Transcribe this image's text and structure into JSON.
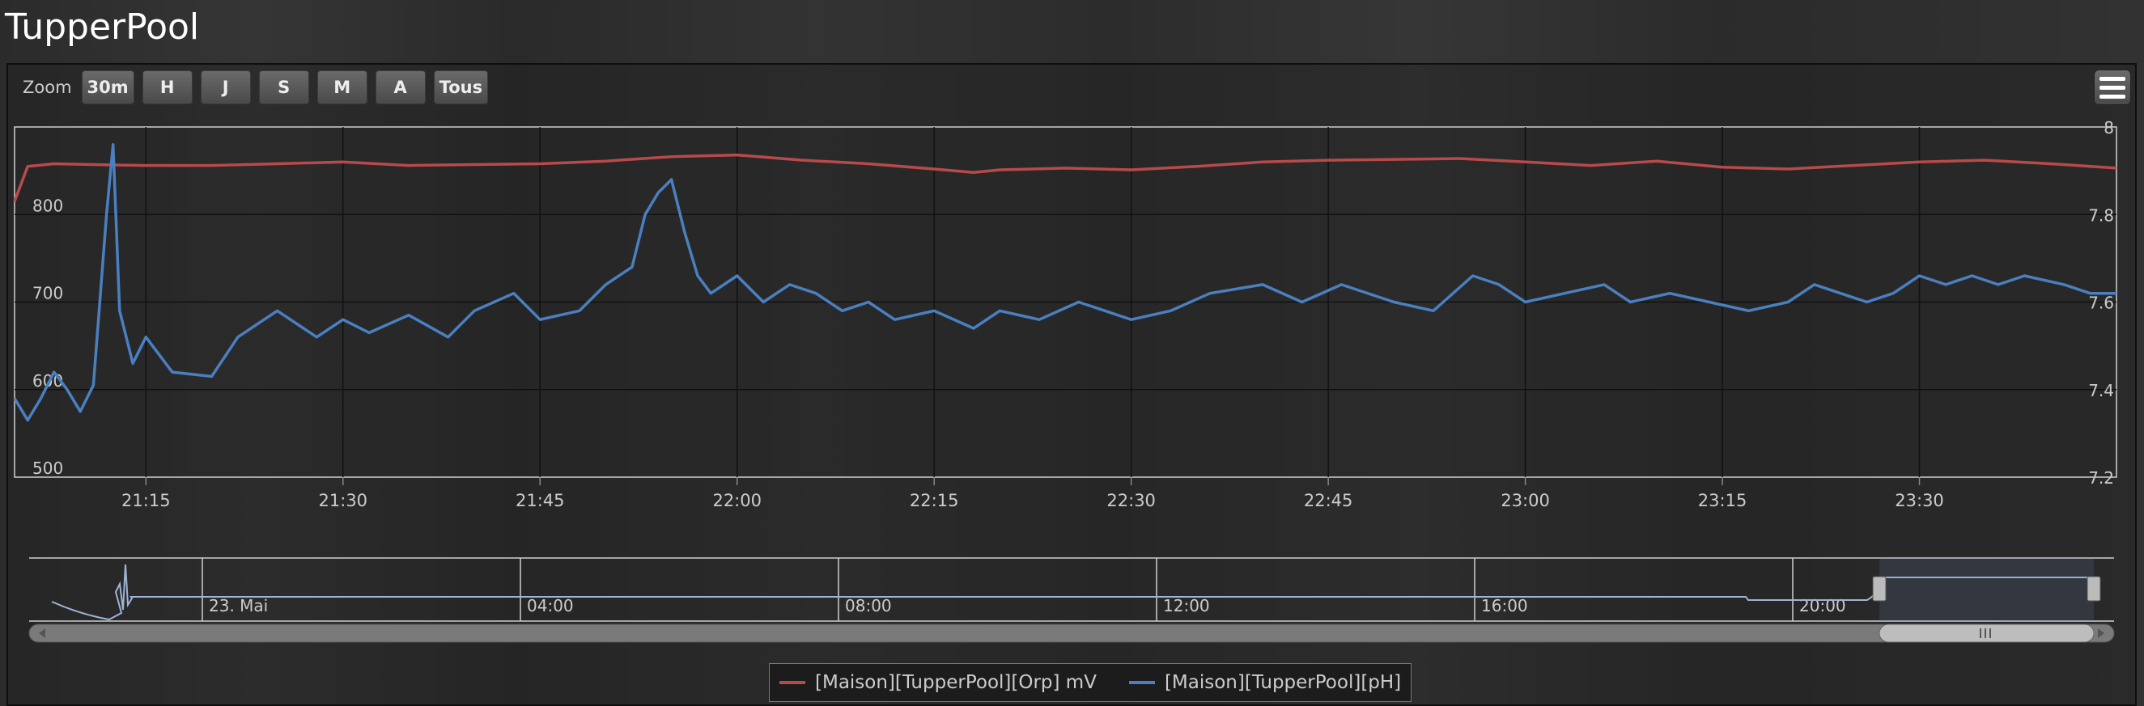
{
  "page": {
    "title": "TupperPool"
  },
  "toolbar": {
    "zoom_label": "Zoom",
    "zoom_buttons": [
      "30m",
      "H",
      "J",
      "S",
      "M",
      "A",
      "Tous"
    ]
  },
  "colors": {
    "orp": "#b84a4a",
    "ph": "#4a7fc0",
    "navigator": "#9fb4d6"
  },
  "chart_data": {
    "type": "line",
    "x_range": [
      "21:05",
      "23:45"
    ],
    "x_ticks": [
      "21:15",
      "21:30",
      "21:45",
      "22:00",
      "22:15",
      "22:30",
      "22:45",
      "23:00",
      "23:15",
      "23:30"
    ],
    "y_left": {
      "range": [
        500,
        900
      ],
      "ticks": [
        500,
        600,
        700,
        800
      ]
    },
    "y_right": {
      "range": [
        7.2,
        8.0
      ],
      "ticks": [
        7.2,
        7.4,
        7.6,
        7.8,
        8
      ]
    },
    "grid": true,
    "legend_position": "bottom-center",
    "series": [
      {
        "name": "[Maison][TupperPool][Orp] mV",
        "axis": "left",
        "points": [
          [
            "21:05",
            815
          ],
          [
            "21:06",
            855
          ],
          [
            "21:08",
            858
          ],
          [
            "21:11",
            857
          ],
          [
            "21:15",
            856
          ],
          [
            "21:20",
            856
          ],
          [
            "21:25",
            858
          ],
          [
            "21:30",
            860
          ],
          [
            "21:35",
            856
          ],
          [
            "21:40",
            857
          ],
          [
            "21:45",
            858
          ],
          [
            "21:50",
            861
          ],
          [
            "21:55",
            866
          ],
          [
            "22:00",
            868
          ],
          [
            "22:05",
            862
          ],
          [
            "22:10",
            858
          ],
          [
            "22:15",
            852
          ],
          [
            "22:18",
            848
          ],
          [
            "22:20",
            851
          ],
          [
            "22:25",
            853
          ],
          [
            "22:30",
            851
          ],
          [
            "22:35",
            855
          ],
          [
            "22:40",
            860
          ],
          [
            "22:45",
            862
          ],
          [
            "22:50",
            863
          ],
          [
            "22:55",
            864
          ],
          [
            "23:00",
            860
          ],
          [
            "23:05",
            856
          ],
          [
            "23:10",
            861
          ],
          [
            "23:15",
            854
          ],
          [
            "23:20",
            852
          ],
          [
            "23:25",
            856
          ],
          [
            "23:30",
            860
          ],
          [
            "23:35",
            862
          ],
          [
            "23:40",
            858
          ],
          [
            "23:45",
            853
          ]
        ]
      },
      {
        "name": "[Maison][TupperPool][pH]",
        "axis": "right",
        "points": [
          [
            "21:05",
            7.38
          ],
          [
            "21:06",
            7.33
          ],
          [
            "21:07",
            7.38
          ],
          [
            "21:08",
            7.44
          ],
          [
            "21:09",
            7.4
          ],
          [
            "21:10",
            7.35
          ],
          [
            "21:11",
            7.41
          ],
          [
            "21:12",
            7.8
          ],
          [
            "21:12.5",
            7.96
          ],
          [
            "21:13",
            7.58
          ],
          [
            "21:14",
            7.46
          ],
          [
            "21:15",
            7.52
          ],
          [
            "21:17",
            7.44
          ],
          [
            "21:20",
            7.43
          ],
          [
            "21:22",
            7.52
          ],
          [
            "21:25",
            7.58
          ],
          [
            "21:28",
            7.52
          ],
          [
            "21:30",
            7.56
          ],
          [
            "21:32",
            7.53
          ],
          [
            "21:35",
            7.57
          ],
          [
            "21:38",
            7.52
          ],
          [
            "21:40",
            7.58
          ],
          [
            "21:43",
            7.62
          ],
          [
            "21:45",
            7.56
          ],
          [
            "21:48",
            7.58
          ],
          [
            "21:50",
            7.64
          ],
          [
            "21:52",
            7.68
          ],
          [
            "21:53",
            7.8
          ],
          [
            "21:54",
            7.85
          ],
          [
            "21:55",
            7.88
          ],
          [
            "21:56",
            7.76
          ],
          [
            "21:57",
            7.66
          ],
          [
            "21:58",
            7.62
          ],
          [
            "22:00",
            7.66
          ],
          [
            "22:02",
            7.6
          ],
          [
            "22:04",
            7.64
          ],
          [
            "22:06",
            7.62
          ],
          [
            "22:08",
            7.58
          ],
          [
            "22:10",
            7.6
          ],
          [
            "22:12",
            7.56
          ],
          [
            "22:15",
            7.58
          ],
          [
            "22:18",
            7.54
          ],
          [
            "22:20",
            7.58
          ],
          [
            "22:23",
            7.56
          ],
          [
            "22:26",
            7.6
          ],
          [
            "22:28",
            7.58
          ],
          [
            "22:30",
            7.56
          ],
          [
            "22:33",
            7.58
          ],
          [
            "22:36",
            7.62
          ],
          [
            "22:40",
            7.64
          ],
          [
            "22:43",
            7.6
          ],
          [
            "22:46",
            7.64
          ],
          [
            "22:50",
            7.6
          ],
          [
            "22:53",
            7.58
          ],
          [
            "22:56",
            7.66
          ],
          [
            "22:58",
            7.64
          ],
          [
            "23:00",
            7.6
          ],
          [
            "23:03",
            7.62
          ],
          [
            "23:06",
            7.64
          ],
          [
            "23:08",
            7.6
          ],
          [
            "23:11",
            7.62
          ],
          [
            "23:14",
            7.6
          ],
          [
            "23:17",
            7.58
          ],
          [
            "23:20",
            7.6
          ],
          [
            "23:22",
            7.64
          ],
          [
            "23:24",
            7.62
          ],
          [
            "23:26",
            7.6
          ],
          [
            "23:28",
            7.62
          ],
          [
            "23:30",
            7.66
          ],
          [
            "23:32",
            7.64
          ],
          [
            "23:34",
            7.66
          ],
          [
            "23:36",
            7.64
          ],
          [
            "23:38",
            7.66
          ],
          [
            "23:41",
            7.64
          ],
          [
            "23:43",
            7.62
          ],
          [
            "23:45",
            7.62
          ]
        ]
      }
    ],
    "navigator": {
      "x_labels": [
        "23. Mai",
        "04:00",
        "08:00",
        "12:00",
        "16:00",
        "20:00"
      ],
      "selected_range": [
        "21:05",
        "23:45"
      ]
    }
  }
}
